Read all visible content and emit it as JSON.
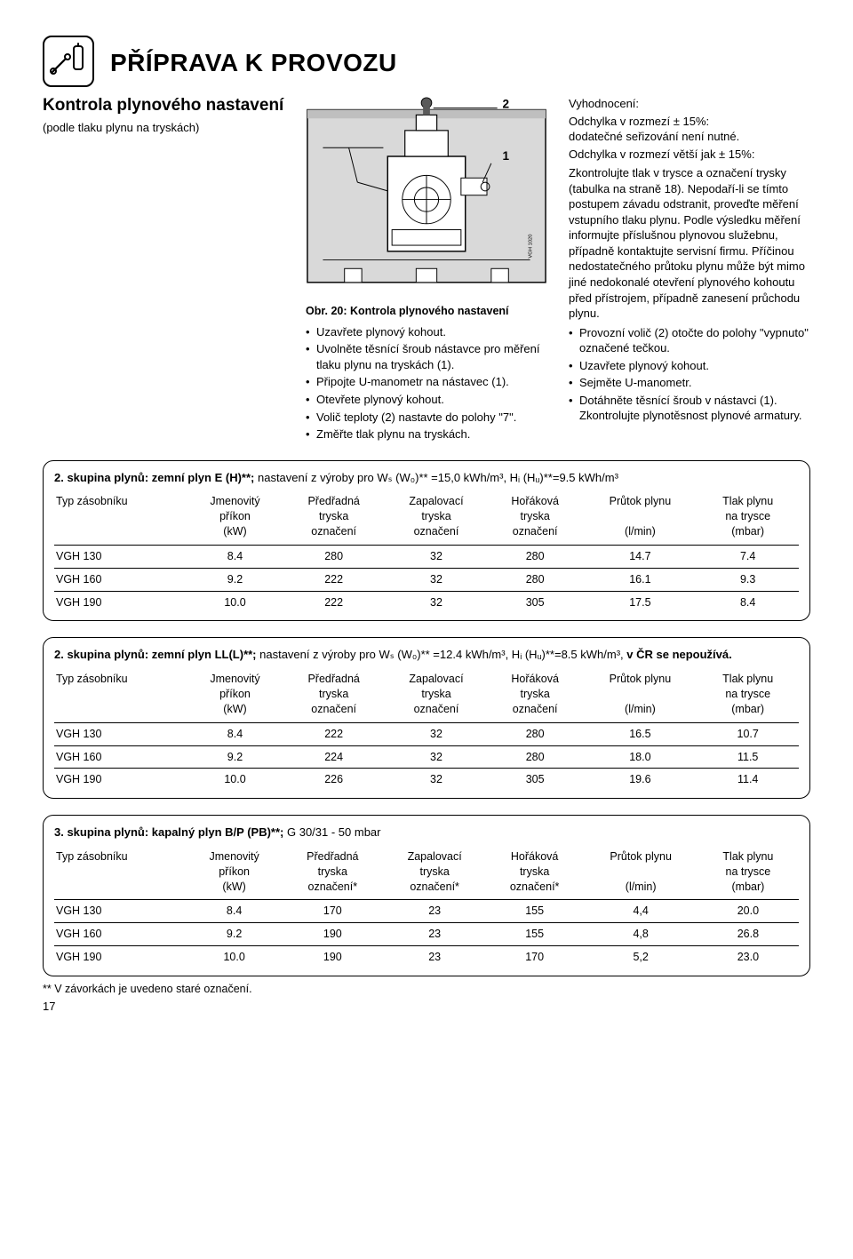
{
  "page": {
    "title": "PŘÍPRAVA K PROVOZU",
    "page_number": "17"
  },
  "left": {
    "heading": "Kontrola plynového nastavení",
    "sub": "(podle tlaku plynu na tryskách)"
  },
  "figure": {
    "caption": "Obr. 20: Kontrola plynového nastavení",
    "label1": "1",
    "label2": "2",
    "corner": "VGH 1020"
  },
  "mid_bullets": [
    "Uzavřete plynový kohout.",
    "Uvolněte těsnící šroub nástavce pro měření tlaku plynu na tryskách (1).",
    "Připojte U-manometr na nástavec (1).",
    "Otevřete plynový kohout.",
    "Volič teploty (2) nastavte do polohy \"7\".",
    "Změřte tlak plynu na tryskách."
  ],
  "right": {
    "eval_label": "Vyhodnocení:",
    "line1": "Odchylka v rozmezí ± 15%:",
    "line1b": "dodatečné seřizování není nutné.",
    "line2": "Odchylka v rozmezí větší jak ± 15%:",
    "body": "Zkontrolujte tlak v trysce a označení trysky (tabulka na straně 18). Nepodaří-li se tímto postupem závadu odstranit, proveďte měření vstupního tlaku plynu. Podle výsledku měření informujte příslušnou plynovou služebnu, případně kontaktujte servisní firmu. Příčinou nedostatečného průtoku plynu může být mimo jiné nedokonalé otevření plynového kohoutu před přístrojem, případně zanesení průchodu plynu.",
    "bullets": [
      "Provozní volič (2) otočte do polohy \"vypnuto\" označené tečkou.",
      "Uzavřete plynový kohout.",
      "Sejměte U-manometr.",
      "Dotáhněte těsnící šroub v nástavci (1). Zkontrolujte plynotěsnost plynové armatury."
    ]
  },
  "tables": {
    "headers": {
      "col1": "Typ zásobníku",
      "col2a": "Jmenovitý",
      "col2b": "příkon",
      "col2c": "(kW)",
      "col3a": "Předřadná",
      "col3b": "tryska",
      "col3c": "označení",
      "col4a": "Zapalovací",
      "col4b": "tryska",
      "col4c": "označení",
      "col5a": "Hořáková",
      "col5b": "tryska",
      "col5c": "označení",
      "col6a": "Průtok plynu",
      "col6c": "(l/min)",
      "col7a": "Tlak plynu",
      "col7b": "na trysce",
      "col7c": "(mbar)"
    },
    "headers_star": {
      "col3c": "označení*",
      "col4c": "označení*",
      "col5c": "označení*"
    },
    "group1_title_lead": "2. skupina plynů: zemní plyn E (H)**; ",
    "group1_title_tail": "nastavení z výroby pro Wₛ (W₀)** =15,0 kWh/m³, Hᵢ (Hᵤ)**=9.5 kWh/m³",
    "group1_rows": [
      [
        "VGH 130",
        "8.4",
        "280",
        "32",
        "280",
        "14.7",
        "7.4"
      ],
      [
        "VGH 160",
        "9.2",
        "222",
        "32",
        "280",
        "16.1",
        "9.3"
      ],
      [
        "VGH 190",
        "10.0",
        "222",
        "32",
        "305",
        "17.5",
        "8.4"
      ]
    ],
    "group2_title_lead": "2. skupina plynů: zemní plyn LL(L)**; ",
    "group2_title_tail_a": "nastavení z výroby pro Wₛ (W₀)** =12.4 kWh/m³, Hᵢ (Hᵤ)**=8.5 kWh/m³, ",
    "group2_title_tail_b": "v ČR se nepoužívá.",
    "group2_rows": [
      [
        "VGH 130",
        "8.4",
        "222",
        "32",
        "280",
        "16.5",
        "10.7"
      ],
      [
        "VGH 160",
        "9.2",
        "224",
        "32",
        "280",
        "18.0",
        "11.5"
      ],
      [
        "VGH 190",
        "10.0",
        "226",
        "32",
        "305",
        "19.6",
        "11.4"
      ]
    ],
    "group3_title_lead": "3. skupina plynů: kapalný plyn B/P (PB)**; ",
    "group3_title_tail": "G 30/31 - 50 mbar",
    "group3_rows": [
      [
        "VGH 130",
        "8.4",
        "170",
        "23",
        "155",
        "4,4",
        "20.0"
      ],
      [
        "VGH 160",
        "9.2",
        "190",
        "23",
        "155",
        "4,8",
        "26.8"
      ],
      [
        "VGH 190",
        "10.0",
        "190",
        "23",
        "170",
        "5,2",
        "23.0"
      ]
    ],
    "footnote": "** V závorkách je uvedeno staré označení."
  }
}
